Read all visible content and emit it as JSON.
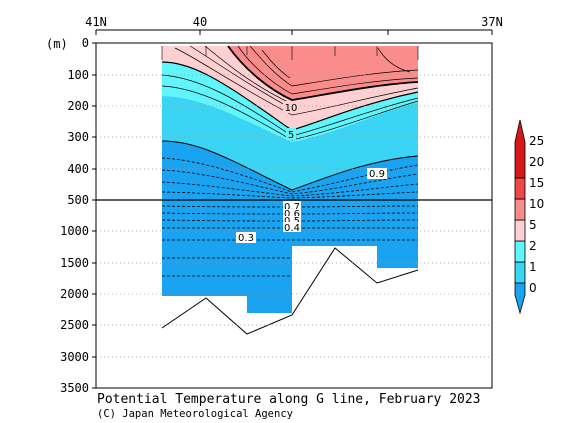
{
  "chart_data": {
    "type": "heatmap",
    "title": "Potential Temperature along G line, February 2023",
    "credit": "(C) Japan Meteorological Agency",
    "x_ticks": [
      "41N",
      "40",
      "37N"
    ],
    "ylabel": "(m)",
    "y_ticks_upper": [
      0,
      100,
      200,
      300,
      400,
      500
    ],
    "y_ticks_lower": [
      1000,
      1500,
      2000,
      2500,
      3000,
      3500
    ],
    "y_break_depth": 500,
    "ylim": [
      0,
      3500
    ],
    "colorbar_levels": [
      0,
      1,
      2,
      5,
      10,
      15,
      20,
      25
    ],
    "colorbar_colors": [
      "#1aa3f0",
      "#3ad5f5",
      "#5ff5fb",
      "#ffd0d2",
      "#fa8c8c",
      "#f04646",
      "#d81818"
    ],
    "contour_labels": [
      "10",
      "5",
      "0.9",
      "0.7",
      "0.6",
      "0.5",
      "0.4",
      "0.3"
    ],
    "section": {
      "station_latitudes": [
        40.15,
        39.75,
        39.45,
        39.1,
        38.75,
        38.45
      ],
      "mixed_layer_depth": [
        60,
        90,
        220,
        270,
        240,
        190
      ],
      "isotherm_10": [
        5,
        5,
        180,
        210,
        140,
        135
      ],
      "isotherm_5": [
        60,
        80,
        245,
        295,
        255,
        215
      ],
      "isotherm_2": [
        310,
        315,
        410,
        470,
        420,
        365
      ],
      "bottom_depth": [
        2600,
        2100,
        2650,
        2300,
        1300,
        1850,
        1650
      ],
      "bottom_latitudes": [
        40.15,
        39.75,
        39.45,
        39.1,
        38.75,
        38.45,
        38.15
      ]
    }
  }
}
